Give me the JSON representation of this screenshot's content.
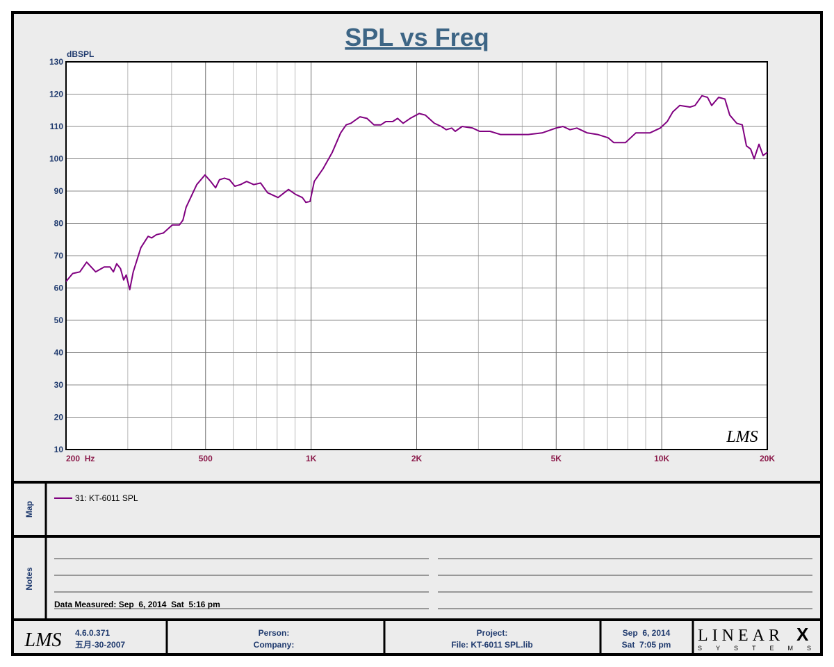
{
  "chart_data": {
    "type": "line",
    "title": "SPL vs Freq",
    "y_label": "dBSPL",
    "watermark": "LMS",
    "log_x": true,
    "grid": true,
    "xlim": [
      200,
      20000
    ],
    "xticks": [
      {
        "value": 200,
        "label": "200  Hz"
      },
      500,
      {
        "value": 1000,
        "label": "1K"
      },
      {
        "value": 2000,
        "label": "2K"
      },
      {
        "value": 5000,
        "label": "5K"
      },
      {
        "value": 10000,
        "label": "10K"
      },
      {
        "value": 20000,
        "label": "20K"
      }
    ],
    "xgrid": [
      300,
      400,
      600,
      700,
      800,
      900,
      3000,
      4000,
      6000,
      7000,
      8000,
      9000
    ],
    "ylim": [
      10,
      130
    ],
    "yticks": [
      10,
      20,
      30,
      40,
      50,
      60,
      70,
      80,
      90,
      100,
      110,
      120,
      130
    ],
    "x": [
      200,
      209,
      219,
      229,
      243,
      257,
      267,
      273,
      279,
      286,
      292,
      297,
      304,
      311,
      327,
      343,
      351,
      362,
      379,
      402,
      421,
      431,
      440,
      472,
      498,
      517,
      534,
      548,
      566,
      585,
      606,
      629,
      655,
      686,
      718,
      751,
      805,
      862,
      902,
      944,
      966,
      993,
      1021,
      1083,
      1149,
      1214,
      1259,
      1299,
      1379,
      1443,
      1511,
      1581,
      1633,
      1709,
      1765,
      1830,
      1917,
      2033,
      2118,
      2246,
      2352,
      2428,
      2518,
      2576,
      2697,
      2888,
      3024,
      3238,
      3467,
      3799,
      4162,
      4559,
      4995,
      5228,
      5473,
      5728,
      6134,
      6567,
      7031,
      7296,
      7878,
      8439,
      9249,
      9902,
      10368,
      10752,
      11253,
      12051,
      12442,
      13024,
      13508,
      13880,
      14528,
      15140,
      15630,
      16360,
      16970,
      17440,
      17930,
      18350,
      18940,
      19460,
      20000
    ],
    "series": [
      {
        "name": "31: KT-6011 SPL",
        "color": "#800080",
        "values": [
          62,
          64.5,
          65,
          68,
          65,
          66.5,
          66.5,
          65,
          67.5,
          66,
          62.5,
          64,
          59.5,
          65,
          72.5,
          76,
          75.5,
          76.5,
          77,
          79.5,
          79.5,
          81,
          85,
          92,
          95,
          93,
          91,
          93.5,
          94,
          93.5,
          91.5,
          92,
          93,
          92,
          92.5,
          89.5,
          88,
          90.5,
          89,
          88,
          86.5,
          86.8,
          93,
          97,
          102,
          108,
          110.5,
          111,
          113,
          112.5,
          110.5,
          110.5,
          111.5,
          111.5,
          112.5,
          111,
          112.5,
          114,
          113.5,
          111,
          110,
          109,
          109.5,
          108.5,
          110,
          109.5,
          108.5,
          108.5,
          107.5,
          107.5,
          107.5,
          108,
          109.5,
          110,
          109,
          109.5,
          108,
          107.5,
          106.5,
          105,
          105,
          108,
          108,
          109.5,
          111.5,
          114.5,
          116.5,
          116,
          116.5,
          119.5,
          119,
          116.5,
          119,
          118.5,
          113.5,
          111,
          110.5,
          104,
          103,
          100,
          104.5,
          101,
          102
        ]
      }
    ]
  },
  "panels": {
    "map_label": "Map",
    "notes_label": "Notes",
    "notes_text": "Data Measured: Sep  6, 2014  Sat  5:16 pm"
  },
  "footer": {
    "logo": "LMS",
    "version": "4.6.0.371",
    "build_date": "五月-30-2007",
    "person": "Person:",
    "company": "Company:",
    "project": "Project:",
    "file": "File: KT-6011 SPL.lib",
    "date": "Sep  6, 2014",
    "time": "Sat  7:05 pm",
    "brand": "LINEAR",
    "brand_x": "X",
    "brand_sub": "SYSTEMS"
  }
}
